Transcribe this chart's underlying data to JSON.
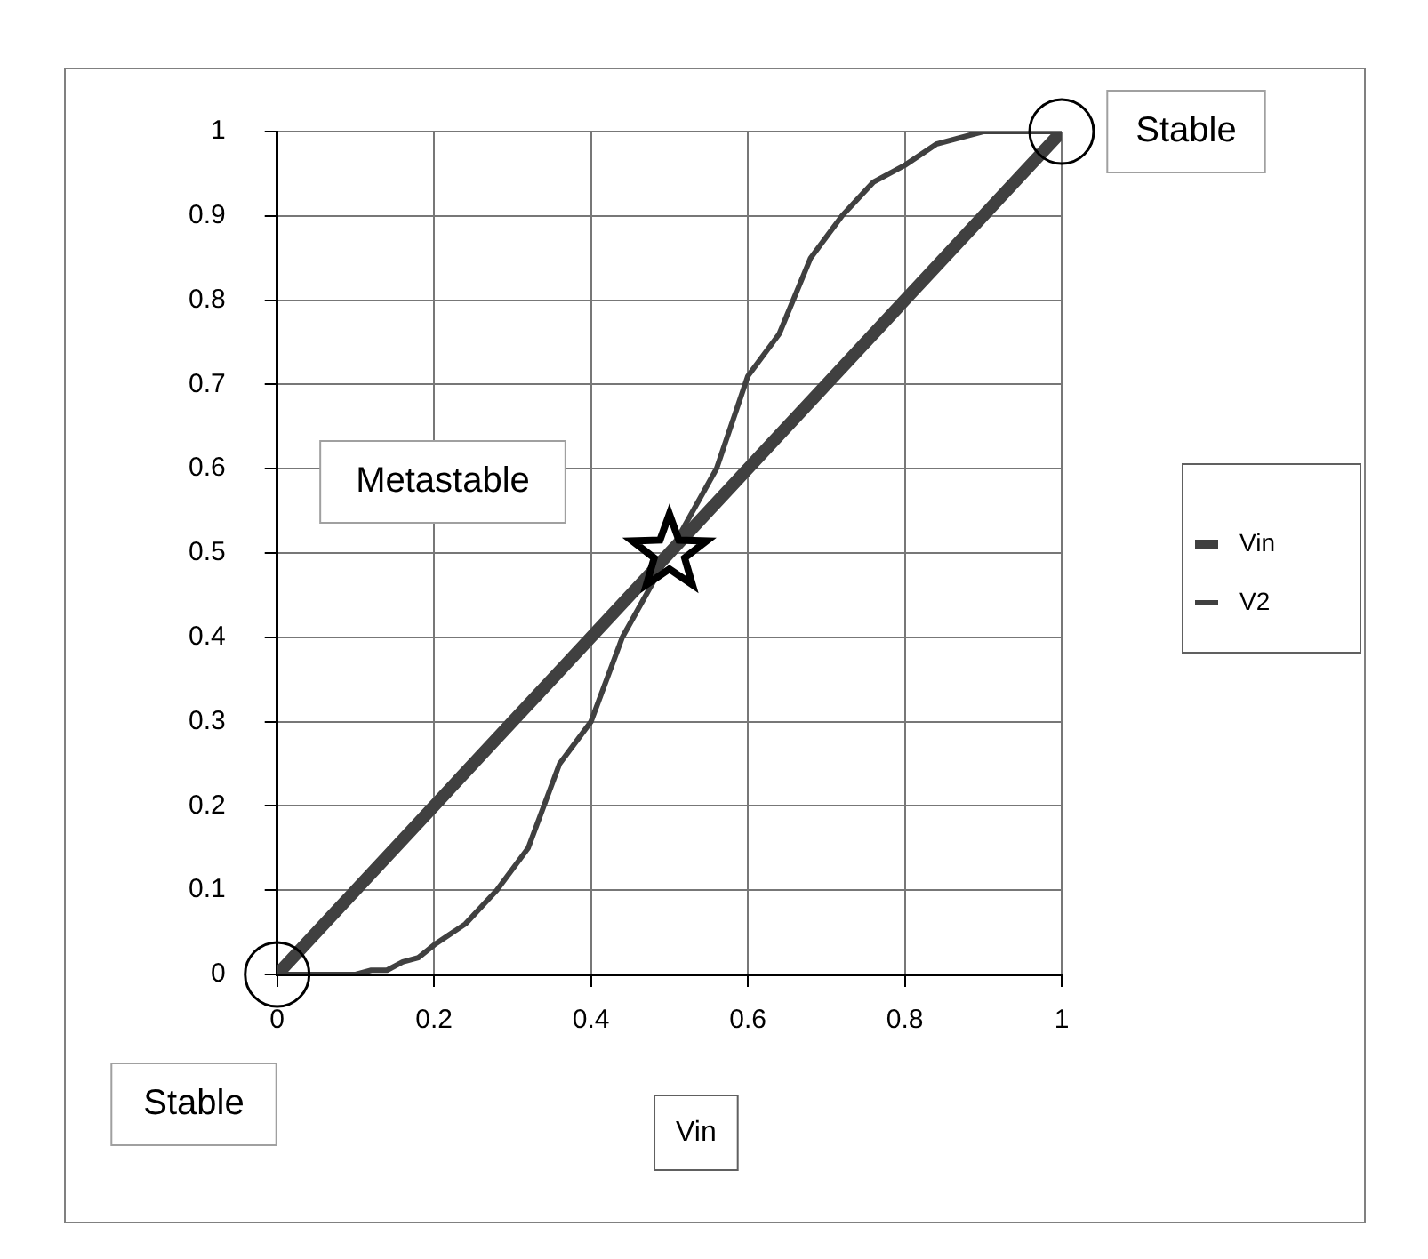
{
  "chart_data": {
    "type": "line",
    "xlabel": "Vin",
    "xlim": [
      0,
      1
    ],
    "xticks": [
      0,
      0.2,
      0.4,
      0.6,
      0.8,
      1
    ],
    "ylim": [
      0,
      1
    ],
    "yticks": [
      0,
      0.1,
      0.2,
      0.3,
      0.4,
      0.5,
      0.6,
      0.7,
      0.8,
      0.9,
      1
    ],
    "grid": true,
    "legend": "right",
    "marker": "none",
    "line_style": "solid",
    "series": [
      {
        "name": "Vin",
        "color": "#404040",
        "x": [
          0,
          0.1,
          0.2,
          0.3,
          0.4,
          0.5,
          0.6,
          0.7,
          0.8,
          0.9,
          1
        ],
        "values": [
          0,
          0.1,
          0.2,
          0.3,
          0.4,
          0.5,
          0.6,
          0.7,
          0.8,
          0.9,
          1
        ]
      },
      {
        "name": "V2",
        "color": "#404040",
        "x": [
          0,
          0.1,
          0.12,
          0.14,
          0.16,
          0.18,
          0.2,
          0.24,
          0.28,
          0.32,
          0.36,
          0.4,
          0.44,
          0.5,
          0.56,
          0.6,
          0.64,
          0.68,
          0.72,
          0.76,
          0.8,
          0.84,
          0.9,
          1
        ],
        "values": [
          0,
          0,
          0.005,
          0.005,
          0.015,
          0.02,
          0.035,
          0.06,
          0.1,
          0.15,
          0.25,
          0.3,
          0.4,
          0.5,
          0.6,
          0.71,
          0.76,
          0.85,
          0.9,
          0.94,
          0.96,
          0.985,
          1,
          1
        ]
      },
      {
        "type": "scatter",
        "marker": "circle",
        "color": "#000000",
        "x": [
          0,
          1
        ],
        "values": [
          0,
          1
        ]
      },
      {
        "type": "scatter",
        "marker": "star",
        "color": "#000000",
        "x": [
          0.5
        ],
        "values": [
          0.5
        ]
      }
    ],
    "annotations": [
      "Stable",
      "Metastable",
      "Stable"
    ]
  }
}
